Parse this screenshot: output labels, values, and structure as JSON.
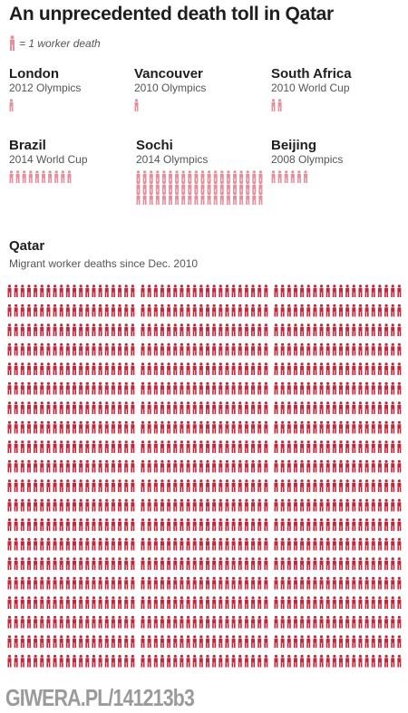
{
  "title": "An unprecedented death toll in Qatar",
  "legend": {
    "label": "= 1 worker death",
    "icon": "person-icon"
  },
  "colors": {
    "olympic_icon": "#e48f9e",
    "qatar_icon": "#c2283c",
    "title_text": "#1e1e1e",
    "subtitle_text": "#555555",
    "watermark": "#9a9a9a"
  },
  "events": [
    {
      "name": "London",
      "sub": "2012 Olympics"
    },
    {
      "name": "Vancouver",
      "sub": "2010 Olympics"
    },
    {
      "name": "South Africa",
      "sub": "2010 World Cup"
    },
    {
      "name": "Brazil",
      "sub": "2014 World Cup"
    },
    {
      "name": "Sochi",
      "sub": "2014 Olympics"
    },
    {
      "name": "Beijing",
      "sub": "2008 Olympics"
    }
  ],
  "qatar": {
    "name": "Qatar",
    "sub": "Migrant worker deaths since Dec. 2010"
  },
  "watermark": "GIWERA.PL/141213b3",
  "chart_data": {
    "type": "pictogram",
    "title": "An unprecedented death toll in Qatar",
    "unit": "1 icon = 1 worker death",
    "categories": [
      "London 2012 Olympics",
      "Vancouver 2010 Olympics",
      "South Africa 2010 World Cup",
      "Brazil 2014 World Cup",
      "Sochi 2014 Olympics",
      "Beijing 2008 Olympics",
      "Qatar"
    ],
    "values": [
      1,
      1,
      2,
      10,
      60,
      6,
      1200
    ]
  }
}
